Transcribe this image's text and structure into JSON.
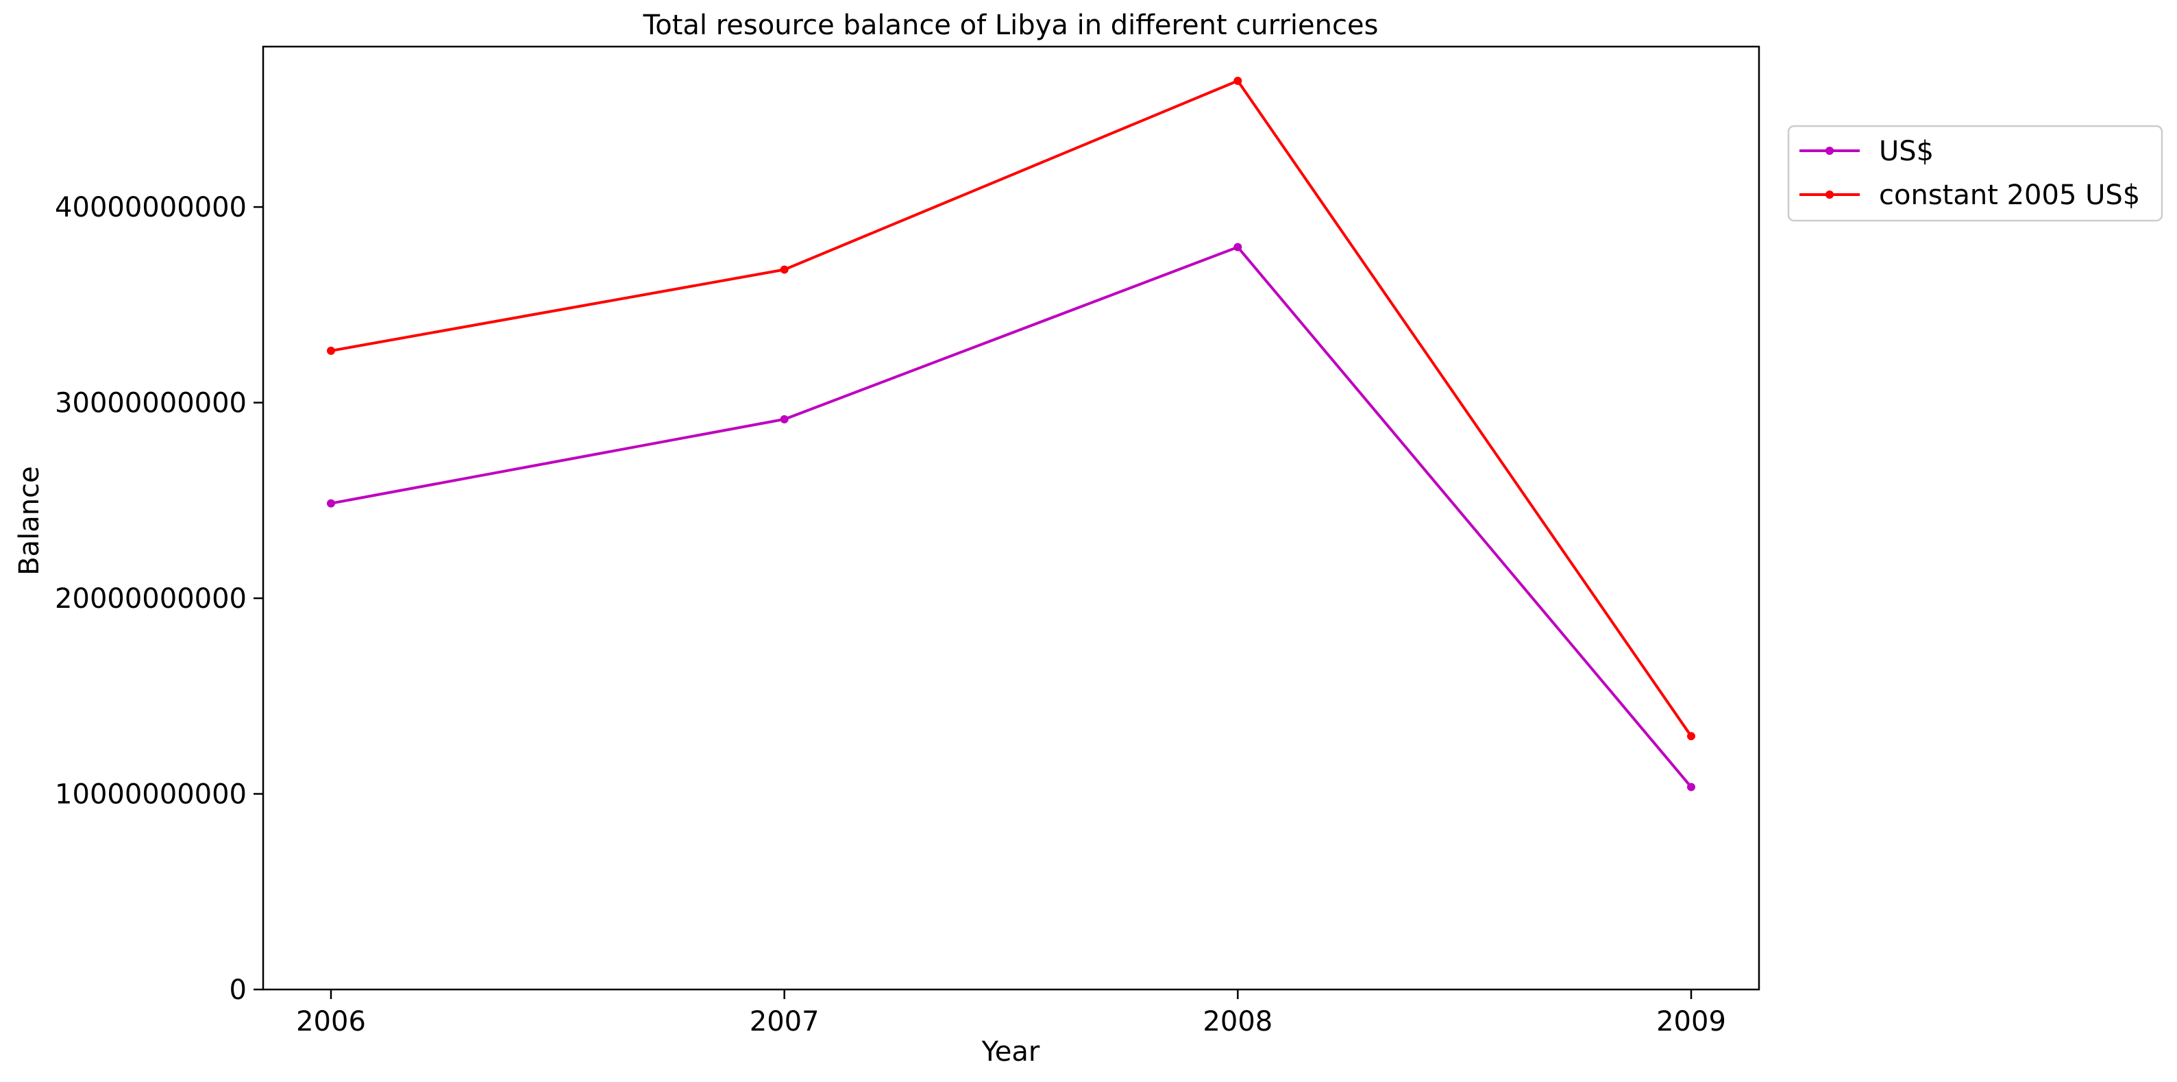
{
  "chart_data": {
    "type": "line",
    "title": "Total resource balance of Libya in different curriences",
    "xlabel": "Year",
    "ylabel": "Balance",
    "x": [
      2006,
      2007,
      2008,
      2009
    ],
    "x_tick_labels": [
      "2006",
      "2007",
      "2008",
      "2009"
    ],
    "ylim": [
      0,
      48200000000
    ],
    "y_ticks": [
      0,
      10000000000,
      20000000000,
      30000000000,
      40000000000
    ],
    "y_tick_labels": [
      "0",
      "10000000000",
      "20000000000",
      "30000000000",
      "40000000000"
    ],
    "grid": false,
    "legend_position": "outside-top-right",
    "series": [
      {
        "name": "US$",
        "color": "#bf00bf",
        "values": [
          24850000000,
          29150000000,
          37950000000,
          10350000000
        ]
      },
      {
        "name": "constant 2005 US$",
        "color": "#ff0000",
        "values": [
          32650000000,
          36800000000,
          46450000000,
          12950000000
        ]
      }
    ]
  }
}
